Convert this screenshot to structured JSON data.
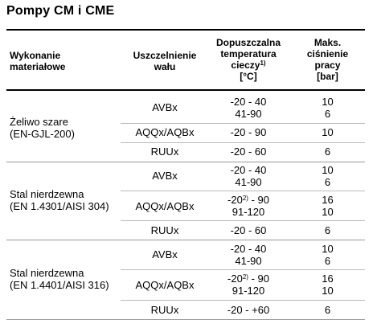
{
  "title": "Pompy CM i CME",
  "headers": {
    "col1_line1": "Wykonanie",
    "col1_line2": "materiałowe",
    "col2_line1": "Uszczelnienie",
    "col2_line2": "wału",
    "col3_line1": "Dopuszczalna",
    "col3_line2": "temperatura",
    "col3_line3": "cieczy",
    "col3_sup": "1)",
    "col3_line4": "[°C]",
    "col4_line1": "Maks.",
    "col4_line2": "ciśnienie",
    "col4_line3": "pracy",
    "col4_line4": "[bar]"
  },
  "groups": [
    {
      "material_line1": "Żeliwo szare",
      "material_line2": "(EN-GJL-200)",
      "rows": [
        {
          "seal": "AVBx",
          "temp1": "-20 - 40",
          "temp2": "41-90",
          "press1": "10",
          "press2": "6"
        },
        {
          "seal": "AQQx/AQBx",
          "temp1": "-20 - 90",
          "press1": "10"
        },
        {
          "seal": "RUUx",
          "temp1": "-20 - 60",
          "press1": "6"
        }
      ]
    },
    {
      "material_line1": "Stal nierdzewna",
      "material_line2": "(EN 1.4301/AISI 304)",
      "rows": [
        {
          "seal": "AVBx",
          "temp1": "-20 - 40",
          "temp2": "41-90",
          "press1": "10",
          "press2": "6"
        },
        {
          "seal": "AQQx/AQBx",
          "temp1_a": "-20",
          "temp1_sup": "2)",
          "temp1_b": " - 90",
          "temp2": "91-120",
          "press1": "16",
          "press2": "10"
        },
        {
          "seal": "RUUx",
          "temp1": "-20 - 60",
          "press1": "6"
        }
      ]
    },
    {
      "material_line1": "Stal nierdzewna",
      "material_line2": "(EN 1.4401/AISI 316)",
      "rows": [
        {
          "seal": "AVBx",
          "temp1": "-20 - 40",
          "temp2": "41-90",
          "press1": "10",
          "press2": "6"
        },
        {
          "seal": "AQQx/AQBx",
          "temp1_a": "-20",
          "temp1_sup": "2)",
          "temp1_b": " - 90",
          "temp2": "91-120",
          "press1": "16",
          "press2": "10"
        },
        {
          "seal": "RUUx",
          "temp1": "-20 - +60",
          "press1": "6"
        }
      ]
    }
  ]
}
